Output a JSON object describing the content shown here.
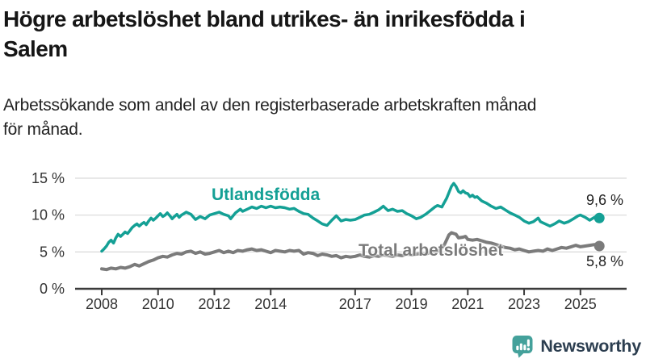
{
  "header": {
    "title": "Högre arbetslöshet bland utrikes- än inrikesfödda i Salem",
    "title_lines": [
      "Högre arbetslöshet bland utrikes- än inrikesfödda i",
      "Salem"
    ],
    "subtitle": "Arbetssökande som andel av den registerbaserade arbetskraften månad för månad.",
    "subtitle_lines": [
      "Arbetssökande som andel av den registerbaserade arbetskraften månad",
      "för månad."
    ]
  },
  "footer": {
    "brand": "Newsworthy",
    "logo_icon": "bar-chart-speech-bubble",
    "logo_teal": "#44A19B",
    "logo_text_color": "#2C3E50"
  },
  "colors": {
    "accent_teal": "#14A095",
    "series_gray": "#7B7B7B",
    "axis": "#3b3b3b",
    "grid": "#dcdcdc",
    "tick_text": "#333333"
  },
  "chart_data": {
    "type": "line",
    "title": "Högre arbetslöshet bland utrikes- än inrikesfödda i Salem",
    "subtitle": "Arbetssökande som andel av den registerbaserade arbetskraften månad för månad.",
    "unit": "%",
    "xlabel": "",
    "ylabel": "",
    "grid": "horizontal",
    "legend_position": "inline",
    "xlim": [
      2007.05,
      2026.6
    ],
    "ylim": [
      0,
      16.5
    ],
    "x_ticks": [
      {
        "v": 2008,
        "label": "2008"
      },
      {
        "v": 2010,
        "label": "2010"
      },
      {
        "v": 2012,
        "label": "2012"
      },
      {
        "v": 2014,
        "label": "2014"
      },
      {
        "v": 2017,
        "label": "2017"
      },
      {
        "v": 2019,
        "label": "2019"
      },
      {
        "v": 2021,
        "label": "2021"
      },
      {
        "v": 2023,
        "label": "2023"
      },
      {
        "v": 2025,
        "label": "2025"
      }
    ],
    "y_ticks": [
      {
        "v": 0,
        "label": "0 %"
      },
      {
        "v": 5,
        "label": "5 %"
      },
      {
        "v": 10,
        "label": "10 %"
      },
      {
        "v": 15,
        "label": "15 %"
      }
    ],
    "series": [
      {
        "name": "Utlandsfödda",
        "color": "#14A095",
        "end_label": "9,6 %",
        "end_value": 9.6,
        "points": [
          [
            2008.0,
            5.1
          ],
          [
            2008.08,
            5.4
          ],
          [
            2008.17,
            5.8
          ],
          [
            2008.25,
            6.3
          ],
          [
            2008.33,
            6.6
          ],
          [
            2008.42,
            6.2
          ],
          [
            2008.5,
            6.9
          ],
          [
            2008.58,
            7.4
          ],
          [
            2008.67,
            7.1
          ],
          [
            2008.75,
            7.4
          ],
          [
            2008.83,
            7.7
          ],
          [
            2008.92,
            7.5
          ],
          [
            2009.0,
            7.9
          ],
          [
            2009.08,
            8.3
          ],
          [
            2009.17,
            8.6
          ],
          [
            2009.25,
            8.8
          ],
          [
            2009.33,
            8.5
          ],
          [
            2009.42,
            8.8
          ],
          [
            2009.5,
            9.0
          ],
          [
            2009.58,
            8.7
          ],
          [
            2009.67,
            9.2
          ],
          [
            2009.75,
            9.6
          ],
          [
            2009.83,
            9.3
          ],
          [
            2009.92,
            9.6
          ],
          [
            2010.0,
            9.9
          ],
          [
            2010.08,
            10.2
          ],
          [
            2010.17,
            9.8
          ],
          [
            2010.25,
            10.0
          ],
          [
            2010.33,
            10.3
          ],
          [
            2010.42,
            9.9
          ],
          [
            2010.5,
            9.5
          ],
          [
            2010.58,
            9.8
          ],
          [
            2010.67,
            10.1
          ],
          [
            2010.75,
            9.7
          ],
          [
            2010.83,
            10.0
          ],
          [
            2010.92,
            10.2
          ],
          [
            2011.0,
            10.4
          ],
          [
            2011.17,
            10.1
          ],
          [
            2011.33,
            9.4
          ],
          [
            2011.5,
            9.8
          ],
          [
            2011.67,
            9.5
          ],
          [
            2011.83,
            10.0
          ],
          [
            2012.0,
            10.2
          ],
          [
            2012.17,
            10.4
          ],
          [
            2012.33,
            10.1
          ],
          [
            2012.5,
            9.9
          ],
          [
            2012.58,
            9.5
          ],
          [
            2012.75,
            10.3
          ],
          [
            2012.92,
            10.8
          ],
          [
            2013.0,
            10.5
          ],
          [
            2013.17,
            10.8
          ],
          [
            2013.33,
            11.1
          ],
          [
            2013.5,
            10.9
          ],
          [
            2013.67,
            11.2
          ],
          [
            2013.83,
            11.0
          ],
          [
            2014.0,
            11.2
          ],
          [
            2014.17,
            11.0
          ],
          [
            2014.33,
            11.1
          ],
          [
            2014.5,
            11.0
          ],
          [
            2014.67,
            10.8
          ],
          [
            2014.83,
            10.9
          ],
          [
            2015.0,
            10.5
          ],
          [
            2015.17,
            10.2
          ],
          [
            2015.33,
            10.1
          ],
          [
            2015.5,
            9.6
          ],
          [
            2015.67,
            9.2
          ],
          [
            2015.83,
            8.8
          ],
          [
            2016.0,
            8.6
          ],
          [
            2016.17,
            9.3
          ],
          [
            2016.33,
            9.9
          ],
          [
            2016.5,
            9.2
          ],
          [
            2016.67,
            9.4
          ],
          [
            2016.83,
            9.3
          ],
          [
            2017.0,
            9.4
          ],
          [
            2017.17,
            9.7
          ],
          [
            2017.33,
            10.0
          ],
          [
            2017.5,
            10.1
          ],
          [
            2017.67,
            10.4
          ],
          [
            2017.83,
            10.7
          ],
          [
            2018.0,
            11.2
          ],
          [
            2018.17,
            10.6
          ],
          [
            2018.33,
            10.8
          ],
          [
            2018.5,
            10.5
          ],
          [
            2018.67,
            10.6
          ],
          [
            2018.83,
            10.2
          ],
          [
            2019.0,
            9.9
          ],
          [
            2019.17,
            9.5
          ],
          [
            2019.33,
            9.7
          ],
          [
            2019.5,
            10.1
          ],
          [
            2019.67,
            10.6
          ],
          [
            2019.83,
            11.1
          ],
          [
            2019.92,
            11.3
          ],
          [
            2020.08,
            11.1
          ],
          [
            2020.25,
            12.3
          ],
          [
            2020.42,
            13.9
          ],
          [
            2020.5,
            14.3
          ],
          [
            2020.58,
            13.9
          ],
          [
            2020.67,
            13.2
          ],
          [
            2020.75,
            13.0
          ],
          [
            2020.83,
            13.3
          ],
          [
            2020.92,
            13.0
          ],
          [
            2021.0,
            12.9
          ],
          [
            2021.08,
            12.5
          ],
          [
            2021.17,
            12.7
          ],
          [
            2021.25,
            12.4
          ],
          [
            2021.33,
            12.5
          ],
          [
            2021.5,
            11.9
          ],
          [
            2021.67,
            11.6
          ],
          [
            2021.83,
            11.2
          ],
          [
            2022.0,
            10.9
          ],
          [
            2022.17,
            11.1
          ],
          [
            2022.33,
            10.7
          ],
          [
            2022.5,
            10.3
          ],
          [
            2022.67,
            10.0
          ],
          [
            2022.83,
            9.7
          ],
          [
            2023.0,
            9.2
          ],
          [
            2023.17,
            8.9
          ],
          [
            2023.33,
            9.1
          ],
          [
            2023.5,
            9.6
          ],
          [
            2023.58,
            9.1
          ],
          [
            2023.75,
            8.8
          ],
          [
            2023.92,
            8.5
          ],
          [
            2024.08,
            8.8
          ],
          [
            2024.25,
            9.2
          ],
          [
            2024.42,
            8.9
          ],
          [
            2024.58,
            9.1
          ],
          [
            2024.75,
            9.5
          ],
          [
            2024.92,
            9.9
          ],
          [
            2025.0,
            10.0
          ],
          [
            2025.17,
            9.7
          ],
          [
            2025.33,
            9.3
          ],
          [
            2025.5,
            9.7
          ],
          [
            2025.67,
            9.6
          ]
        ]
      },
      {
        "name": "Total arbetslöshet",
        "color": "#7B7B7B",
        "end_label": "5,8 %",
        "end_value": 5.8,
        "points": [
          [
            2008.0,
            2.7
          ],
          [
            2008.17,
            2.6
          ],
          [
            2008.33,
            2.8
          ],
          [
            2008.5,
            2.7
          ],
          [
            2008.67,
            2.9
          ],
          [
            2008.83,
            2.8
          ],
          [
            2009.0,
            3.0
          ],
          [
            2009.17,
            3.3
          ],
          [
            2009.33,
            3.1
          ],
          [
            2009.5,
            3.4
          ],
          [
            2009.67,
            3.7
          ],
          [
            2009.83,
            3.9
          ],
          [
            2010.0,
            4.2
          ],
          [
            2010.17,
            4.4
          ],
          [
            2010.33,
            4.3
          ],
          [
            2010.5,
            4.6
          ],
          [
            2010.67,
            4.8
          ],
          [
            2010.83,
            4.7
          ],
          [
            2011.0,
            5.0
          ],
          [
            2011.17,
            5.1
          ],
          [
            2011.33,
            4.8
          ],
          [
            2011.5,
            5.0
          ],
          [
            2011.67,
            4.7
          ],
          [
            2011.83,
            4.8
          ],
          [
            2012.0,
            5.0
          ],
          [
            2012.17,
            5.2
          ],
          [
            2012.33,
            4.9
          ],
          [
            2012.5,
            5.1
          ],
          [
            2012.67,
            4.9
          ],
          [
            2012.83,
            5.2
          ],
          [
            2013.0,
            5.1
          ],
          [
            2013.17,
            5.3
          ],
          [
            2013.33,
            5.4
          ],
          [
            2013.5,
            5.2
          ],
          [
            2013.67,
            5.3
          ],
          [
            2013.83,
            5.1
          ],
          [
            2014.0,
            4.9
          ],
          [
            2014.17,
            5.2
          ],
          [
            2014.33,
            5.1
          ],
          [
            2014.5,
            5.0
          ],
          [
            2014.67,
            5.2
          ],
          [
            2014.83,
            5.1
          ],
          [
            2015.0,
            5.2
          ],
          [
            2015.17,
            4.7
          ],
          [
            2015.33,
            4.9
          ],
          [
            2015.5,
            4.8
          ],
          [
            2015.67,
            4.5
          ],
          [
            2015.83,
            4.7
          ],
          [
            2016.0,
            4.6
          ],
          [
            2016.17,
            4.4
          ],
          [
            2016.33,
            4.5
          ],
          [
            2016.5,
            4.2
          ],
          [
            2016.67,
            4.4
          ],
          [
            2016.83,
            4.3
          ],
          [
            2017.0,
            4.4
          ],
          [
            2017.17,
            4.6
          ],
          [
            2017.33,
            4.4
          ],
          [
            2017.5,
            4.3
          ],
          [
            2017.67,
            4.5
          ],
          [
            2017.83,
            4.4
          ],
          [
            2018.0,
            4.6
          ],
          [
            2018.17,
            4.5
          ],
          [
            2018.33,
            4.4
          ],
          [
            2018.5,
            4.6
          ],
          [
            2018.67,
            4.5
          ],
          [
            2018.83,
            4.7
          ],
          [
            2019.0,
            4.6
          ],
          [
            2019.17,
            4.7
          ],
          [
            2019.33,
            4.8
          ],
          [
            2019.5,
            4.7
          ],
          [
            2019.67,
            4.9
          ],
          [
            2019.83,
            5.0
          ],
          [
            2020.0,
            5.2
          ],
          [
            2020.17,
            6.0
          ],
          [
            2020.33,
            7.3
          ],
          [
            2020.42,
            7.6
          ],
          [
            2020.58,
            7.4
          ],
          [
            2020.67,
            6.9
          ],
          [
            2020.83,
            7.0
          ],
          [
            2020.92,
            7.1
          ],
          [
            2021.0,
            6.7
          ],
          [
            2021.17,
            6.6
          ],
          [
            2021.33,
            6.7
          ],
          [
            2021.5,
            6.5
          ],
          [
            2021.67,
            6.3
          ],
          [
            2021.83,
            6.2
          ],
          [
            2022.0,
            6.0
          ],
          [
            2022.17,
            5.8
          ],
          [
            2022.33,
            5.6
          ],
          [
            2022.5,
            5.5
          ],
          [
            2022.67,
            5.3
          ],
          [
            2022.83,
            5.4
          ],
          [
            2023.0,
            5.2
          ],
          [
            2023.17,
            5.0
          ],
          [
            2023.33,
            5.1
          ],
          [
            2023.5,
            5.2
          ],
          [
            2023.67,
            5.1
          ],
          [
            2023.83,
            5.4
          ],
          [
            2024.0,
            5.2
          ],
          [
            2024.17,
            5.4
          ],
          [
            2024.33,
            5.6
          ],
          [
            2024.5,
            5.5
          ],
          [
            2024.67,
            5.7
          ],
          [
            2024.83,
            5.9
          ],
          [
            2025.0,
            5.7
          ],
          [
            2025.17,
            5.8
          ],
          [
            2025.33,
            5.9
          ],
          [
            2025.5,
            6.0
          ],
          [
            2025.67,
            5.8
          ]
        ]
      }
    ]
  }
}
